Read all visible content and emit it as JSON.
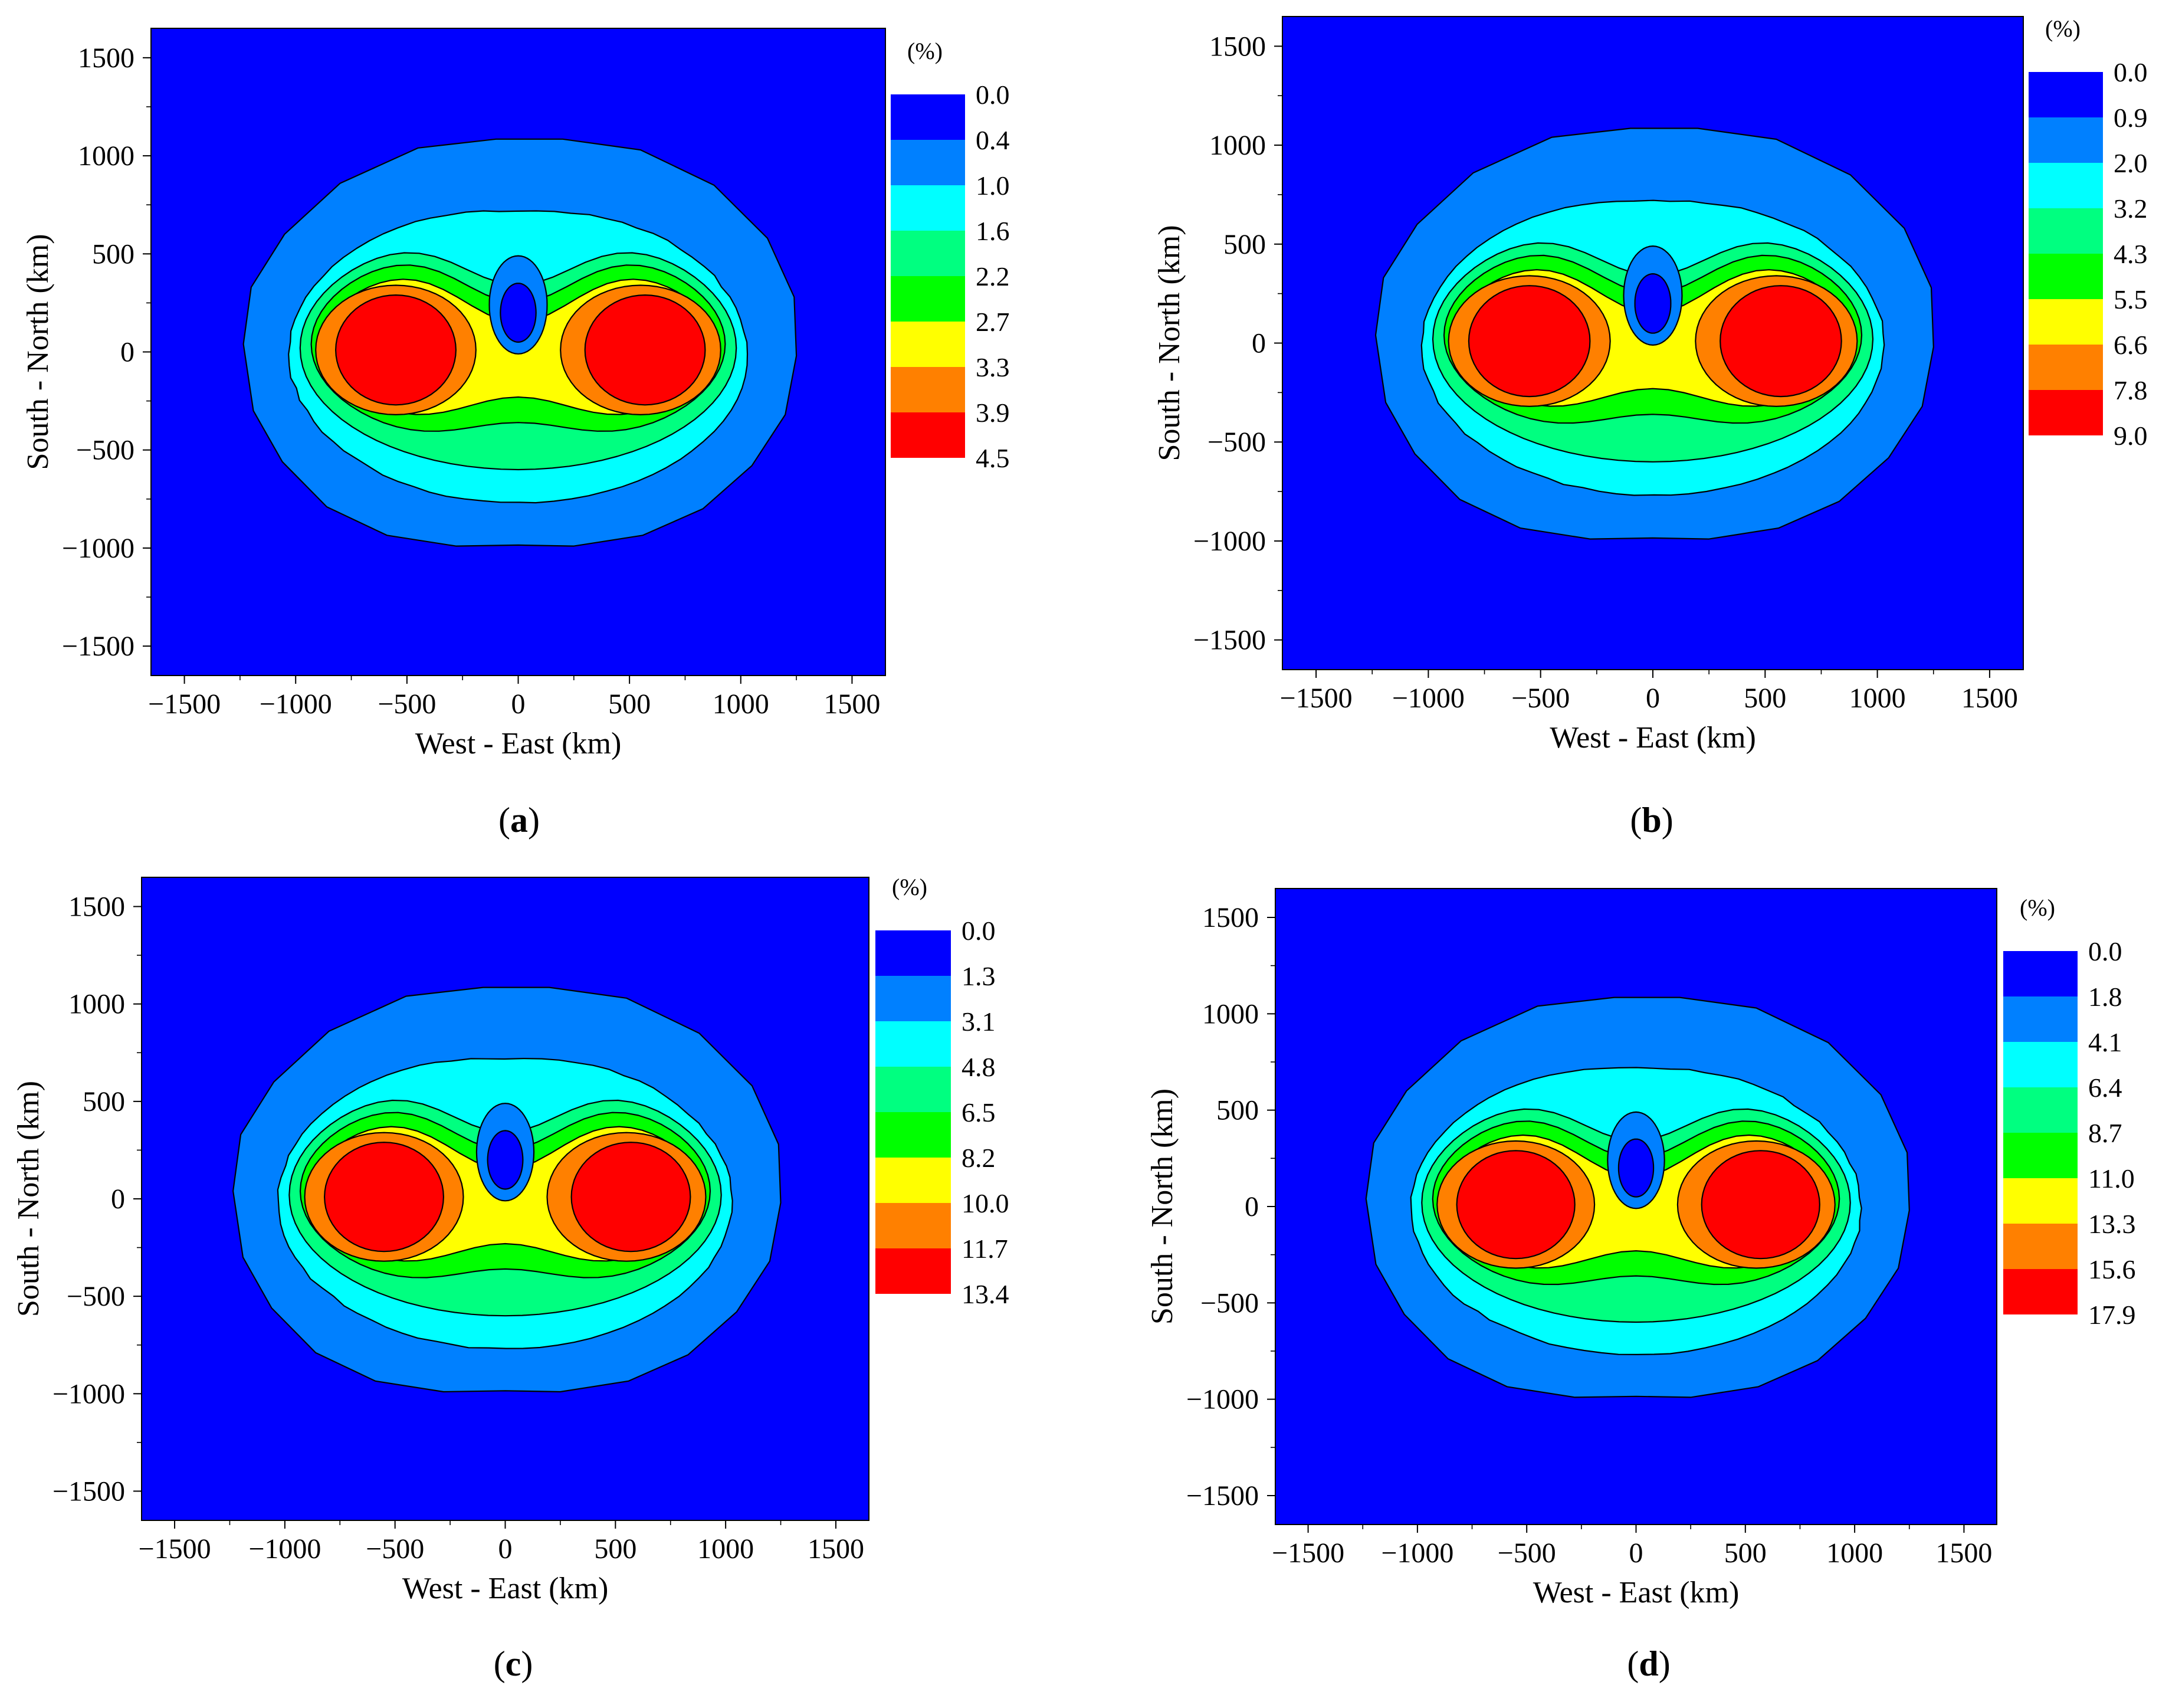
{
  "panels": [
    {
      "id": "a",
      "caption": "a",
      "colorbar_unit": "(%)",
      "colorbar_levels": [
        "0.0",
        "0.4",
        "1.0",
        "1.6",
        "2.2",
        "2.7",
        "3.3",
        "3.9",
        "4.5"
      ]
    },
    {
      "id": "b",
      "caption": "b",
      "colorbar_unit": "(%)",
      "colorbar_levels": [
        "0.0",
        "0.9",
        "2.0",
        "3.2",
        "4.3",
        "5.5",
        "6.6",
        "7.8",
        "9.0"
      ]
    },
    {
      "id": "c",
      "caption": "c",
      "colorbar_unit": "(%)",
      "colorbar_levels": [
        "0.0",
        "1.3",
        "3.1",
        "4.8",
        "6.5",
        "8.2",
        "10.0",
        "11.7",
        "13.4"
      ]
    },
    {
      "id": "d",
      "caption": "d",
      "colorbar_unit": "(%)",
      "colorbar_levels": [
        "0.0",
        "1.8",
        "4.1",
        "6.4",
        "8.7",
        "11.0",
        "13.3",
        "15.6",
        "17.9"
      ]
    }
  ],
  "chart_data": [
    {
      "type": "heatmap",
      "panel": "a",
      "xlabel": "West - East (km)",
      "ylabel": "South - North (km)",
      "xlim": [
        -1650,
        1650
      ],
      "ylim": [
        -1650,
        1650
      ],
      "xticks": [
        -1500,
        -1000,
        -500,
        0,
        500,
        1000,
        1500
      ],
      "yticks": [
        -1500,
        -1000,
        -500,
        0,
        500,
        1000,
        1500
      ],
      "colorbar_unit": "%",
      "levels": [
        0.0,
        0.4,
        1.0,
        1.6,
        2.2,
        2.7,
        3.3,
        3.9,
        4.5
      ],
      "level_colors": [
        "#0000ff",
        "#0080ff",
        "#00ffff",
        "#00ff80",
        "#00ff00",
        "#ffff00",
        "#ff8000",
        "#ff0000"
      ],
      "maxima_centers_km": [
        [
          -550,
          0
        ],
        [
          550,
          0
        ]
      ],
      "local_minimum_center_km": [
        0,
        200
      ]
    },
    {
      "type": "heatmap",
      "panel": "b",
      "xlabel": "West - East (km)",
      "ylabel": "South - North (km)",
      "xlim": [
        -1650,
        1650
      ],
      "ylim": [
        -1650,
        1650
      ],
      "xticks": [
        -1500,
        -1000,
        -500,
        0,
        500,
        1000,
        1500
      ],
      "yticks": [
        -1500,
        -1000,
        -500,
        0,
        500,
        1000,
        1500
      ],
      "colorbar_unit": "%",
      "levels": [
        0.0,
        0.9,
        2.0,
        3.2,
        4.3,
        5.5,
        6.6,
        7.8,
        9.0
      ],
      "level_colors": [
        "#0000ff",
        "#0080ff",
        "#00ffff",
        "#00ff80",
        "#00ff00",
        "#ffff00",
        "#ff8000",
        "#ff0000"
      ],
      "maxima_centers_km": [
        [
          -550,
          0
        ],
        [
          550,
          0
        ]
      ],
      "local_minimum_center_km": [
        0,
        200
      ]
    },
    {
      "type": "heatmap",
      "panel": "c",
      "xlabel": "West - East (km)",
      "ylabel": "South - North (km)",
      "xlim": [
        -1650,
        1650
      ],
      "ylim": [
        -1650,
        1650
      ],
      "xticks": [
        -1500,
        -1000,
        -500,
        0,
        500,
        1000,
        1500
      ],
      "yticks": [
        -1500,
        -1000,
        -500,
        0,
        500,
        1000,
        1500
      ],
      "colorbar_unit": "%",
      "levels": [
        0.0,
        1.3,
        3.1,
        4.8,
        6.5,
        8.2,
        10.0,
        11.7,
        13.4
      ],
      "level_colors": [
        "#0000ff",
        "#0080ff",
        "#00ffff",
        "#00ff80",
        "#00ff00",
        "#ffff00",
        "#ff8000",
        "#ff0000"
      ],
      "maxima_centers_km": [
        [
          -550,
          0
        ],
        [
          550,
          0
        ]
      ],
      "local_minimum_center_km": [
        0,
        200
      ]
    },
    {
      "type": "heatmap",
      "panel": "d",
      "xlabel": "West - East (km)",
      "ylabel": "South - North (km)",
      "xlim": [
        -1650,
        1650
      ],
      "ylim": [
        -1650,
        1650
      ],
      "xticks": [
        -1500,
        -1000,
        -500,
        0,
        500,
        1000,
        1500
      ],
      "yticks": [
        -1500,
        -1000,
        -500,
        0,
        500,
        1000,
        1500
      ],
      "colorbar_unit": "%",
      "levels": [
        0.0,
        1.8,
        4.1,
        6.4,
        8.7,
        11.0,
        13.3,
        15.6,
        17.9
      ],
      "level_colors": [
        "#0000ff",
        "#0080ff",
        "#00ffff",
        "#00ff80",
        "#00ff00",
        "#ffff00",
        "#ff8000",
        "#ff0000"
      ],
      "maxima_centers_km": [
        [
          -550,
          0
        ],
        [
          550,
          0
        ]
      ],
      "local_minimum_center_km": [
        0,
        200
      ]
    }
  ]
}
